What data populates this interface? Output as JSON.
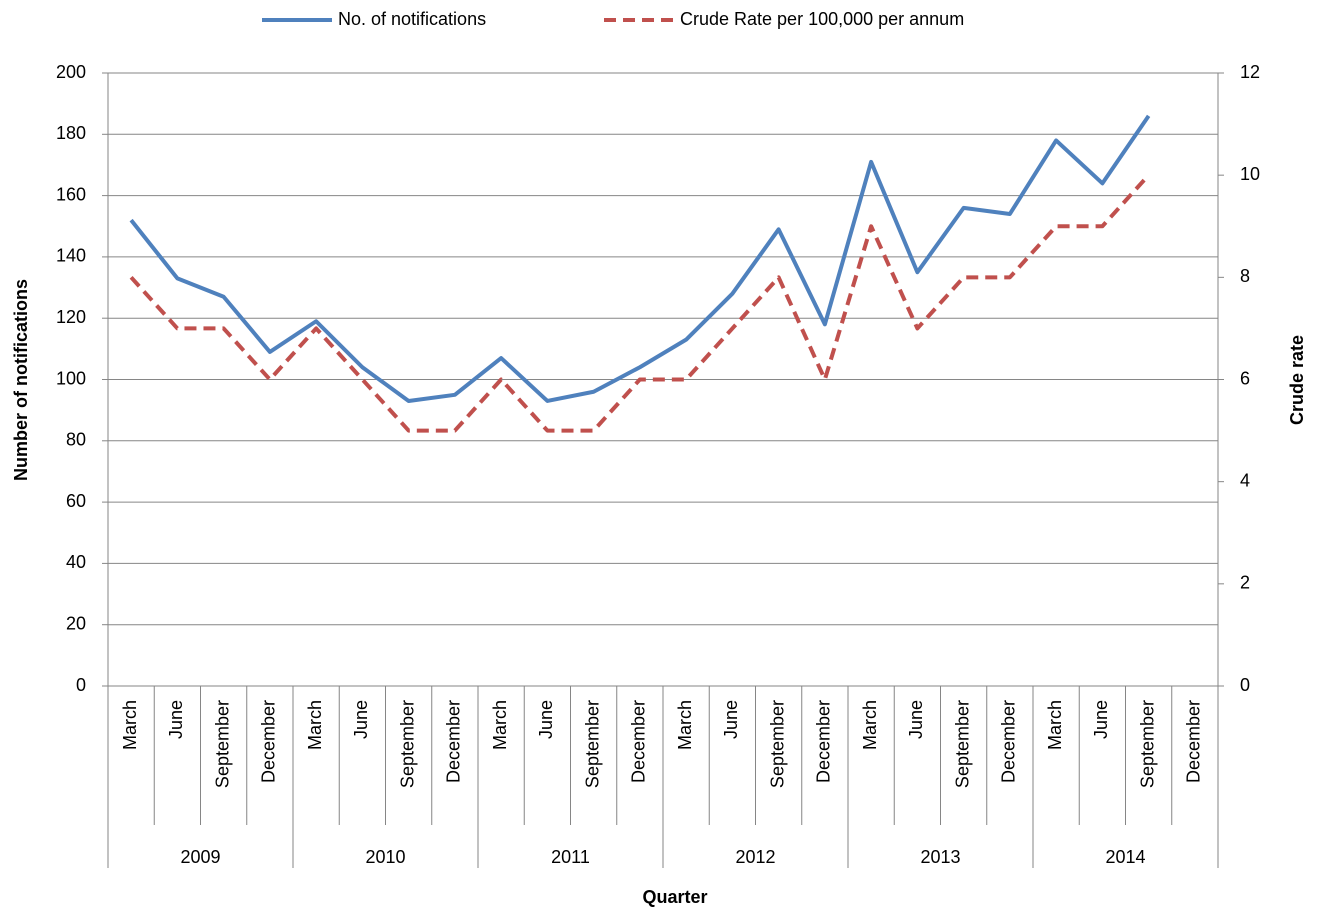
{
  "chart_data": {
    "type": "line",
    "x_title": "Quarter",
    "y_title": "Number of notifications",
    "y2_title": "Crude rate",
    "categories": [
      "March",
      "June",
      "September",
      "December",
      "March",
      "June",
      "September",
      "December",
      "March",
      "June",
      "September",
      "December",
      "March",
      "June",
      "September",
      "December",
      "March",
      "June",
      "September",
      "December",
      "March",
      "June",
      "September",
      "December"
    ],
    "category_groups": [
      "2009",
      "2010",
      "2011",
      "2012",
      "2013",
      "2014"
    ],
    "series": [
      {
        "name": "No. of notifications",
        "color": "#4f81bd",
        "values": [
          152,
          133,
          127,
          109,
          119,
          104,
          93,
          95,
          107,
          93,
          96,
          104,
          113,
          128,
          149,
          118,
          171,
          135,
          156,
          154,
          178,
          164,
          186,
          null
        ]
      },
      {
        "name": "Crude Rate per 100,000 per annum",
        "color": "#c0504d",
        "axis": "y2",
        "dashed": true,
        "values": [
          8,
          7,
          7,
          6,
          7,
          6,
          5,
          5,
          6,
          5,
          5,
          6,
          6,
          7,
          8,
          6,
          9,
          7,
          8,
          8,
          9,
          9,
          10,
          null
        ]
      }
    ],
    "ylim": [
      0,
      200
    ],
    "yticks": [
      0,
      20,
      40,
      60,
      80,
      100,
      120,
      140,
      160,
      180,
      200
    ],
    "y2lim": [
      0,
      12
    ],
    "y2ticks": [
      0,
      2,
      4,
      6,
      8,
      10,
      12
    ],
    "grid": true,
    "legend": "top"
  }
}
